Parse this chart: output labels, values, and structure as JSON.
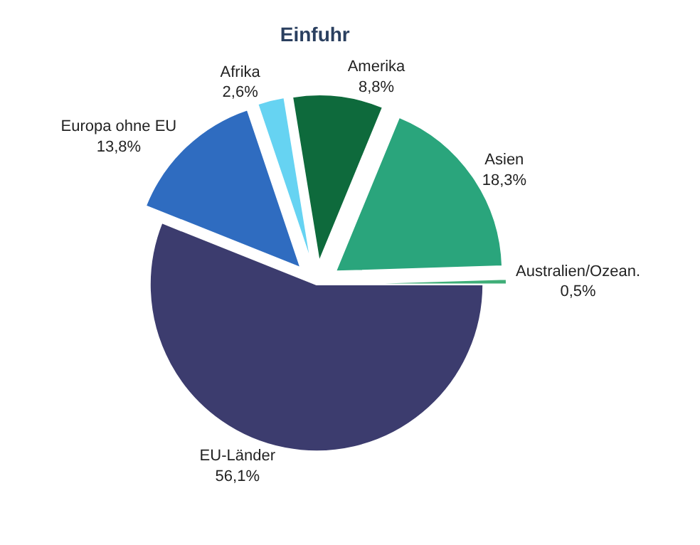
{
  "chart_data": {
    "type": "pie",
    "title": "Einfuhr",
    "categories": [
      "EU-Länder",
      "Europa ohne EU",
      "Afrika",
      "Amerika",
      "Asien",
      "Australien/Ozean."
    ],
    "values": [
      56.1,
      13.8,
      2.6,
      8.8,
      18.3,
      0.5
    ],
    "value_labels": [
      "56,1%",
      "13,8%",
      "2,6%",
      "8,8%",
      "18,3%",
      "0,5%"
    ],
    "colors": [
      "#3c3c6e",
      "#2f6cc0",
      "#66d3f2",
      "#0e6a3c",
      "#2aa57c",
      "#3fae78"
    ],
    "legend": false
  }
}
